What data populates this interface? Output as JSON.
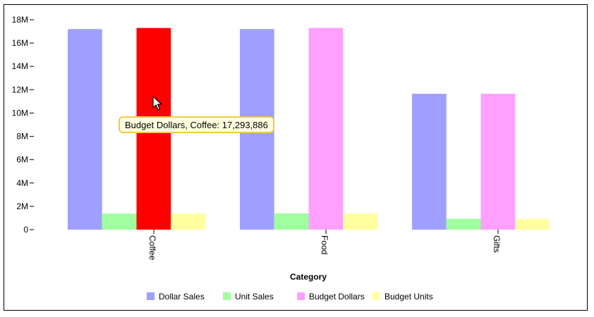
{
  "chart_data": {
    "type": "bar",
    "categories": [
      "Coffee",
      "Food",
      "Gifts"
    ],
    "series": [
      {
        "name": "Dollar Sales",
        "color": "#9f9fff",
        "values": [
          17200000,
          17200000,
          11650000
        ]
      },
      {
        "name": "Unit Sales",
        "color": "#9fff9f",
        "values": [
          1380000,
          1390000,
          930000
        ]
      },
      {
        "name": "Budget Dollars",
        "color": "#ff9fff",
        "values": [
          17293886,
          17300000,
          11650000
        ]
      },
      {
        "name": "Budget Units",
        "color": "#ffff9f",
        "values": [
          1390000,
          1390000,
          930000
        ]
      }
    ],
    "highlight": {
      "series": 2,
      "category": 0,
      "color": "#ff0000"
    },
    "xlabel": "Category",
    "ylabel": "",
    "ylim": [
      0,
      18000000
    ],
    "ytick_values": [
      0,
      2000000,
      4000000,
      6000000,
      8000000,
      10000000,
      12000000,
      14000000,
      16000000,
      18000000
    ],
    "ytick_labels": [
      "0",
      "2M",
      "4M",
      "6M",
      "8M",
      "10M",
      "12M",
      "14M",
      "16M",
      "18M"
    ],
    "grid": false,
    "legend_position": "bottom"
  },
  "tooltip": {
    "text": "Budget Dollars, Coffee: 17,293,886"
  },
  "cursor_icon": "arrow-pointer-icon"
}
